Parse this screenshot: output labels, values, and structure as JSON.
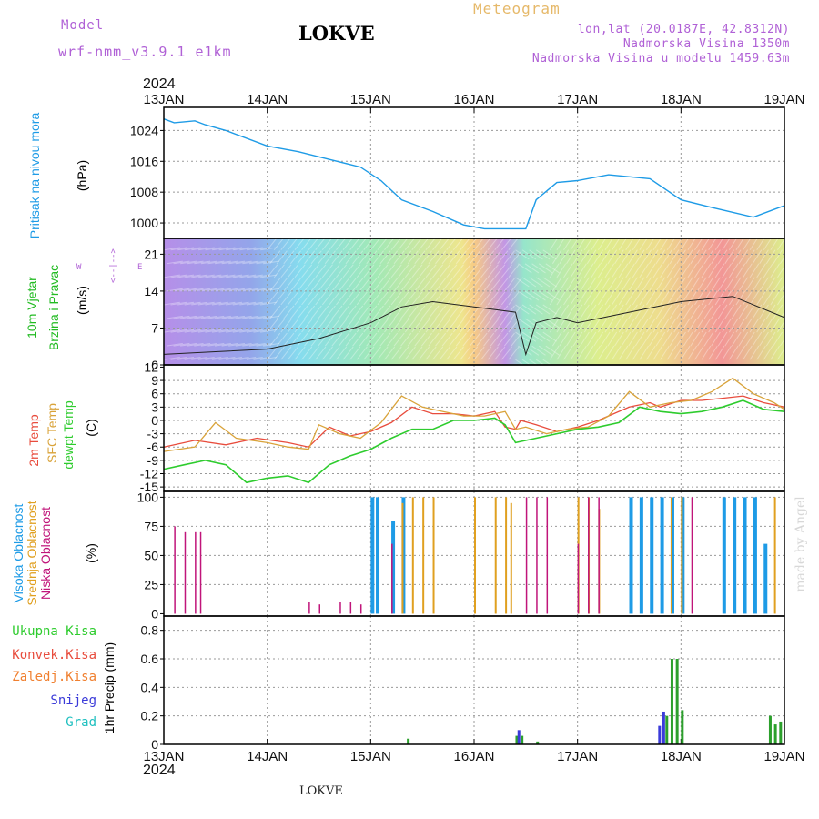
{
  "header": {
    "model_label": "Model",
    "model_value": "wrf-nmm_v3.9.1 e1km",
    "station": "LOKVE",
    "meteogram": "Meteogram",
    "lonlat": "lon,lat (20.0187E, 42.8312N)",
    "elevation": "Nadmorska Visina 1350m",
    "elevation_model": "Nadmorska Visina u modelu 1459.63m",
    "year_top": "2024",
    "year_bottom": "2024",
    "footer_station": "LOKVE",
    "watermark": "made by Angel"
  },
  "colors": {
    "pressure": "#1e9be6",
    "wind_label": "#22bb22",
    "temp2m": "#e84c3d",
    "sfc": "#d9a33a",
    "dew": "#2ecc2e",
    "high_cloud": "#1e9be6",
    "mid_cloud": "#e0a020",
    "low_cloud": "#c0157a",
    "precip_total": "#2ca02c",
    "precip_conv": "#e84c3d",
    "precip_frozen": "#f08030",
    "snow": "#3b3bd9",
    "hail": "#20c0c0",
    "model_text": "#b061d6",
    "meteogram_text": "#e6b96a"
  },
  "x_axis": {
    "ticks": [
      "13JAN",
      "14JAN",
      "15JAN",
      "16JAN",
      "17JAN",
      "18JAN",
      "19JAN"
    ]
  },
  "panels": {
    "pressure": {
      "title": "Pritisak na nivou mora",
      "unit": "(hPa)",
      "ticks": [
        "1024",
        "1016",
        "1008",
        "1000"
      ]
    },
    "wind": {
      "title1": "10m Vjetar",
      "title2": "Brzina i Pravac",
      "unit": "(m/s)",
      "ticks": [
        "21",
        "14",
        "7",
        "0"
      ],
      "compass_w": "W",
      "compass_e": "E",
      "compass_mid": "<--|-->",
      "compass_top": "N",
      "compass_bottom": "S"
    },
    "temperature": {
      "title1": "2m Temp",
      "title2": "SFC Temp",
      "title3": "dewpt Temp",
      "unit": "(C)",
      "ticks": [
        "12",
        "9",
        "6",
        "3",
        "0",
        "-3",
        "-6",
        "-9",
        "-12",
        "-15"
      ]
    },
    "cloud": {
      "title1": "Visoka Oblacnost",
      "title2": "Srednja Oblacnost",
      "title3": "Niska Oblacnost",
      "unit": "(%)",
      "ticks": [
        "100",
        "75",
        "50",
        "25",
        "0"
      ]
    },
    "precip": {
      "unit": "1hr Precip (mm)",
      "ticks": [
        "0.8",
        "0.6",
        "0.4",
        "0.2",
        "0"
      ],
      "legend": [
        "Ukupna Kisa",
        "Konvek.Kisa",
        "Zaledj.Kisa",
        "Snijeg",
        "Grad"
      ]
    }
  },
  "chart_data": [
    {
      "type": "line",
      "panel": "pressure",
      "ylabel": "Pritisak na nivou mora (hPa)",
      "ylim": [
        996,
        1030
      ],
      "series": [
        {
          "name": "Pritisak na nivou mora",
          "x": [
            0,
            0.1,
            0.3,
            0.4,
            0.6,
            1.0,
            1.3,
            1.6,
            1.9,
            2.1,
            2.3,
            2.6,
            2.9,
            3.1,
            3.3,
            3.5,
            3.6,
            3.8,
            4.0,
            4.3,
            4.7,
            5.0,
            5.3,
            5.7,
            5.9,
            6.0
          ],
          "y": [
            1027,
            1026,
            1026.5,
            1025.5,
            1024,
            1020,
            1018.5,
            1016.5,
            1014.5,
            1011,
            1006,
            1003,
            999.5,
            998.5,
            998.5,
            998.5,
            1006,
            1010.5,
            1011,
            1012.5,
            1011.5,
            1006,
            1004,
            1001.5,
            1003.5,
            1004.5
          ]
        }
      ]
    },
    {
      "type": "line",
      "panel": "wind",
      "ylabel": "Brzina i Pravac (m/s)",
      "ylim": [
        0,
        24
      ],
      "series": [
        {
          "name": "10m Vjetar",
          "x": [
            0,
            0.5,
            1.0,
            1.5,
            2.0,
            2.3,
            2.6,
            3.0,
            3.4,
            3.5,
            3.6,
            3.8,
            4.0,
            4.5,
            5.0,
            5.5,
            6.0
          ],
          "y": [
            2,
            2.5,
            3,
            5,
            8,
            11,
            12,
            11,
            10,
            2,
            8,
            9,
            8,
            10,
            12,
            13,
            9
          ]
        }
      ]
    },
    {
      "type": "line",
      "panel": "temperature",
      "ylabel": "(C)",
      "ylim": [
        -16,
        12
      ],
      "series": [
        {
          "name": "2m Temp",
          "x": [
            0,
            0.3,
            0.6,
            0.9,
            1.2,
            1.4,
            1.6,
            1.8,
            2.0,
            2.2,
            2.4,
            2.6,
            2.8,
            3.0,
            3.2,
            3.3,
            3.4,
            3.45,
            3.6,
            3.8,
            4.0,
            4.2,
            4.5,
            4.7,
            4.8,
            5.0,
            5.2,
            5.4,
            5.6,
            5.8,
            6.0
          ],
          "y": [
            -6,
            -4.5,
            -5.5,
            -4,
            -5,
            -6,
            -1.5,
            -3.5,
            -2.5,
            -0.5,
            3,
            1.5,
            1.5,
            1,
            2,
            -1.5,
            -2,
            0,
            -1,
            -2.5,
            -1.5,
            0,
            3,
            4,
            3,
            4.5,
            4.5,
            5,
            5.5,
            4,
            3
          ]
        },
        {
          "name": "SFC Temp",
          "x": [
            0,
            0.3,
            0.5,
            0.7,
            1.0,
            1.2,
            1.4,
            1.5,
            1.7,
            1.9,
            2.1,
            2.3,
            2.5,
            2.7,
            2.9,
            3.1,
            3.3,
            3.4,
            3.5,
            3.7,
            3.9,
            4.1,
            4.3,
            4.5,
            4.7,
            4.9,
            5.1,
            5.3,
            5.5,
            5.7,
            5.9,
            6.0
          ],
          "y": [
            -7,
            -6,
            -0.5,
            -4,
            -5,
            -6,
            -6.5,
            -1,
            -3,
            -4,
            -0.5,
            5.5,
            3,
            2,
            1,
            1,
            2,
            -2,
            -1.5,
            -3,
            -2,
            -1.5,
            1,
            6.5,
            3,
            4,
            4.5,
            6.5,
            9.5,
            6,
            4,
            2.5
          ]
        },
        {
          "name": "dewpt Temp",
          "x": [
            0,
            0.2,
            0.4,
            0.6,
            0.8,
            1.0,
            1.2,
            1.4,
            1.6,
            1.8,
            2.0,
            2.2,
            2.4,
            2.6,
            2.8,
            3.0,
            3.2,
            3.3,
            3.4,
            3.6,
            3.8,
            4.0,
            4.2,
            4.4,
            4.6,
            4.8,
            5.0,
            5.2,
            5.4,
            5.6,
            5.8,
            6.0
          ],
          "y": [
            -11,
            -10,
            -9,
            -10,
            -14,
            -13,
            -12.5,
            -14,
            -10,
            -8,
            -6.5,
            -4,
            -2,
            -2,
            0,
            0,
            0.5,
            -1,
            -5,
            -4,
            -3,
            -2,
            -1.5,
            -0.5,
            3,
            2,
            1.5,
            2,
            3,
            4.5,
            2.5,
            2
          ]
        }
      ]
    },
    {
      "type": "bar",
      "panel": "cloud",
      "ylabel": "(%)",
      "ylim": [
        0,
        100
      ],
      "series": [
        {
          "name": "Visoka Oblacnost",
          "x": [
            2.0,
            2.05,
            2.2,
            2.3,
            4.5,
            4.6,
            4.7,
            4.8,
            4.9,
            5.0,
            5.4,
            5.5,
            5.6,
            5.7,
            5.8
          ],
          "values": [
            100,
            100,
            80,
            100,
            100,
            100,
            100,
            100,
            100,
            100,
            100,
            100,
            100,
            100,
            60
          ]
        },
        {
          "name": "Srednja Oblacnost",
          "x": [
            2.3,
            2.4,
            2.5,
            2.6,
            3.0,
            3.2,
            3.3,
            3.35,
            4.0,
            4.1,
            4.2,
            4.9,
            5.0,
            5.9
          ],
          "values": [
            95,
            100,
            100,
            100,
            100,
            100,
            100,
            95,
            100,
            100,
            90,
            100,
            100,
            100
          ]
        },
        {
          "name": "Niska Oblacnost",
          "x": [
            0.1,
            0.2,
            0.3,
            0.35,
            1.4,
            1.5,
            1.7,
            1.8,
            1.9,
            2.2,
            3.5,
            3.6,
            3.7,
            4.0,
            4.1,
            4.2,
            5.1
          ],
          "values": [
            75,
            70,
            70,
            70,
            10,
            8,
            10,
            10,
            8,
            60,
            100,
            100,
            100,
            60,
            100,
            100,
            100
          ]
        }
      ]
    },
    {
      "type": "bar",
      "panel": "precip",
      "ylabel": "1hr Precip (mm)",
      "ylim": [
        0,
        0.9
      ],
      "series": [
        {
          "name": "Ukupna Kisa",
          "x": [
            2.35,
            3.4,
            3.45,
            3.6,
            4.85,
            4.9,
            4.95,
            5.0,
            5.85,
            5.9,
            5.95
          ],
          "values": [
            0.04,
            0.06,
            0.06,
            0.02,
            0.2,
            0.6,
            0.6,
            0.24,
            0.2,
            0.14,
            0.16
          ]
        },
        {
          "name": "Snijeg",
          "x": [
            3.42,
            4.78,
            4.82
          ],
          "values": [
            0.1,
            0.13,
            0.23
          ]
        }
      ]
    }
  ]
}
